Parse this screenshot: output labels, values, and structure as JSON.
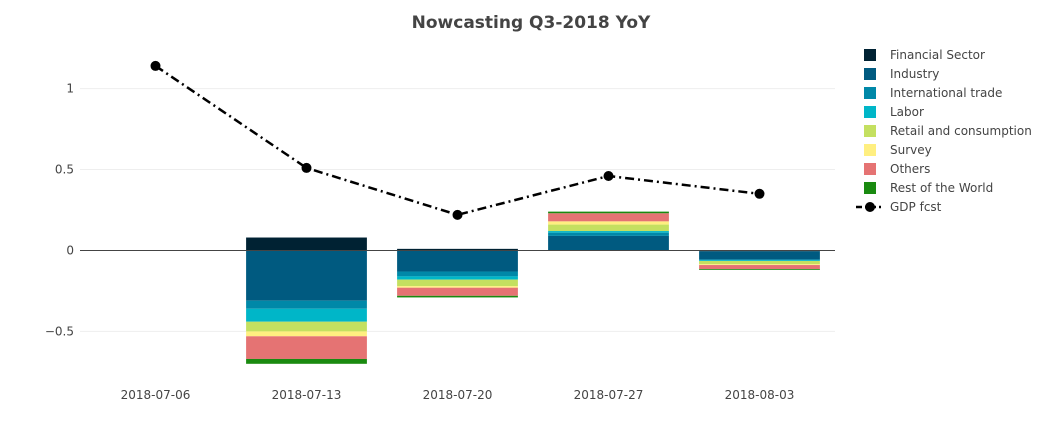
{
  "chart_data": {
    "type": "bar",
    "title": "Nowcasting Q3-2018 YoY",
    "xlabel": "",
    "ylabel": "",
    "categories": [
      "2018-07-06",
      "2018-07-13",
      "2018-07-20",
      "2018-07-27",
      "2018-08-03"
    ],
    "ylim": [
      -0.8,
      1.3
    ],
    "yticks": [
      -0.5,
      0,
      0.5,
      1
    ],
    "ytick_labels": [
      "−0.5",
      "0",
      "0.5",
      "1"
    ],
    "stacked": true,
    "grid": true,
    "legend_position": "right",
    "series": [
      {
        "name": "Financial Sector",
        "color": "#002233",
        "values": [
          0,
          0.08,
          0.01,
          0,
          -0.005
        ]
      },
      {
        "name": "Industry",
        "color": "#005a80",
        "values": [
          0,
          -0.31,
          -0.13,
          0.09,
          -0.05
        ]
      },
      {
        "name": "International trade",
        "color": "#0088a8",
        "values": [
          0,
          -0.05,
          -0.03,
          0.02,
          -0.005
        ]
      },
      {
        "name": "Labor",
        "color": "#00b6c8",
        "values": [
          0,
          -0.08,
          -0.02,
          0.01,
          -0.005
        ]
      },
      {
        "name": "Retail and consumption",
        "color": "#c4e060",
        "values": [
          0,
          -0.06,
          -0.04,
          0.04,
          -0.02
        ]
      },
      {
        "name": "Survey",
        "color": "#ffef80",
        "values": [
          0,
          -0.03,
          -0.01,
          0.02,
          -0.005
        ]
      },
      {
        "name": "Others",
        "color": "#e57373",
        "values": [
          0,
          -0.14,
          -0.05,
          0.05,
          -0.025
        ]
      },
      {
        "name": "Rest of the World",
        "color": "#1a8a10",
        "values": [
          0,
          -0.03,
          -0.01,
          0.01,
          -0.005
        ]
      }
    ],
    "line": {
      "name": "GDP fcst",
      "color": "#000000",
      "values": [
        1.14,
        0.51,
        0.22,
        0.46,
        0.35
      ]
    }
  }
}
